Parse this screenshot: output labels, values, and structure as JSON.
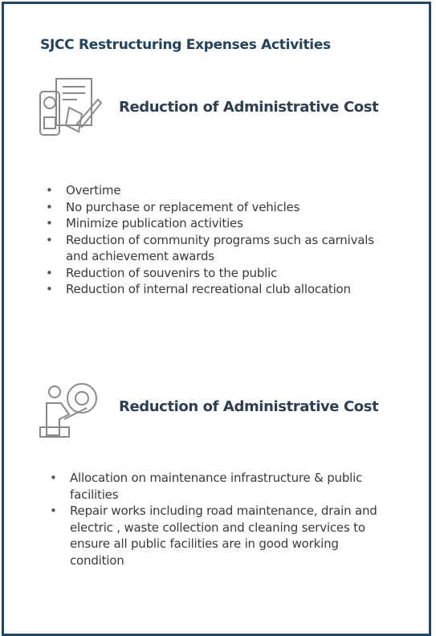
{
  "title": "SJCC Restructuring Expenses Activities",
  "sections": [
    {
      "heading": "Reduction of Administrative Cost",
      "items": [
        "Overtime",
        "No purchase or replacement of vehicles",
        "Minimize publication activities",
        "Reduction of community programs such as carnivals and achievement awards",
        "Reduction of souvenirs to the public",
        "Reduction of internal recreational club allocation"
      ]
    },
    {
      "heading": "Reduction of Administrative Cost",
      "items": [
        "Allocation on maintenance infrastructure & public facilities",
        "Repair works including road maintenance, drain and electric , waste collection and cleaning services to ensure all public facilities are in good working condition"
      ]
    }
  ]
}
